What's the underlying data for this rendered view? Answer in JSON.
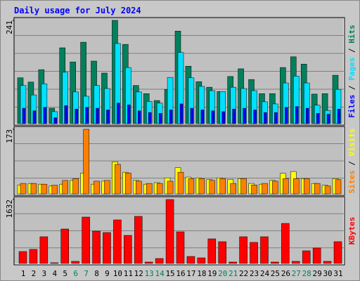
{
  "header": {
    "title": "Daily usage for July 2024"
  },
  "chart_data": [
    {
      "type": "bar",
      "legend_separator": " / ",
      "ylim": [
        0,
        241
      ],
      "yticks": [
        241
      ],
      "series": [
        {
          "name": "Hits",
          "color": "#00805c",
          "values": [
            107,
            97,
            126,
            36,
            177,
            144,
            190,
            146,
            118,
            241,
            185,
            89,
            70,
            54,
            80,
            216,
            134,
            98,
            85,
            75,
            110,
            128,
            103,
            70,
            70,
            131,
            156,
            139,
            69,
            70,
            113
          ]
        },
        {
          "name": "Pages",
          "color": "#00e0ff",
          "values": [
            89,
            67,
            93,
            28,
            120,
            74,
            64,
            89,
            82,
            187,
            131,
            74,
            52,
            48,
            108,
            166,
            107,
            87,
            77,
            75,
            85,
            82,
            77,
            51,
            46,
            95,
            111,
            95,
            43,
            31,
            80
          ]
        },
        {
          "name": "Files",
          "color": "#0000ff",
          "values": [
            36,
            30,
            38,
            14,
            42,
            34,
            38,
            36,
            32,
            48,
            44,
            30,
            26,
            24,
            32,
            46,
            36,
            32,
            30,
            28,
            34,
            36,
            32,
            26,
            26,
            38,
            40,
            36,
            24,
            22,
            34
          ]
        }
      ]
    },
    {
      "type": "bar",
      "legend_separator": " / ",
      "ylim": [
        0,
        173
      ],
      "yticks": [
        173
      ],
      "series": [
        {
          "name": "Visits",
          "color": "#ffff00",
          "values": [
            24,
            28,
            26,
            21,
            26,
            36,
            56,
            26,
            34,
            86,
            58,
            36,
            26,
            30,
            43,
            70,
            45,
            43,
            38,
            43,
            39,
            41,
            28,
            26,
            36,
            55,
            60,
            41,
            28,
            23,
            41
          ]
        },
        {
          "name": "Sites",
          "color": "#ff8000",
          "values": [
            28,
            28,
            26,
            23,
            36,
            41,
            173,
            34,
            36,
            79,
            56,
            34,
            28,
            28,
            34,
            58,
            41,
            41,
            36,
            41,
            28,
            41,
            24,
            28,
            34,
            41,
            41,
            41,
            28,
            21,
            38
          ]
        }
      ]
    },
    {
      "type": "bar",
      "ylim": [
        0,
        1632
      ],
      "yticks": [
        1632
      ],
      "categories": [
        1,
        2,
        3,
        4,
        5,
        6,
        7,
        8,
        9,
        10,
        11,
        12,
        13,
        14,
        15,
        16,
        17,
        18,
        19,
        20,
        21,
        22,
        23,
        24,
        25,
        26,
        27,
        28,
        29,
        30,
        31
      ],
      "category_colors": [
        "#000000",
        "#000000",
        "#000000",
        "#000000",
        "#000000",
        "#00805c",
        "#00805c",
        "#000000",
        "#000000",
        "#000000",
        "#000000",
        "#000000",
        "#00805c",
        "#00805c",
        "#000000",
        "#000000",
        "#000000",
        "#000000",
        "#000000",
        "#00805c",
        "#00805c",
        "#000000",
        "#000000",
        "#000000",
        "#000000",
        "#000000",
        "#00805c",
        "#00805c",
        "#000000",
        "#000000",
        "#000000"
      ],
      "series": [
        {
          "name": "KBytes",
          "color": "#ff0000",
          "values": [
            305,
            359,
            682,
            18,
            879,
            54,
            1184,
            825,
            789,
            1112,
            717,
            1202,
            36,
            126,
            1632,
            807,
            179,
            143,
            628,
            556,
            36,
            682,
            538,
            682,
            36,
            1022,
            54,
            323,
            395,
            54,
            556
          ]
        }
      ]
    }
  ]
}
